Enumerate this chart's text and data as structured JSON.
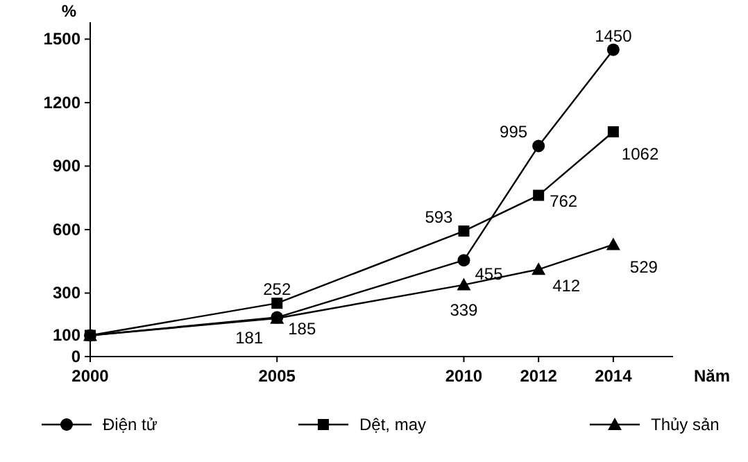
{
  "chart_data": {
    "type": "line",
    "xlabel": "Năm",
    "ylabel": "%",
    "x": [
      2000,
      2005,
      2010,
      2012,
      2014
    ],
    "xlim": [
      2000,
      2015.6
    ],
    "xticks": [
      2000,
      2005,
      2010,
      2012,
      2014
    ],
    "ylim": [
      0,
      1580
    ],
    "yticks": [
      0,
      100,
      300,
      600,
      900,
      1200,
      1500
    ],
    "grid": false,
    "legend": "bottom",
    "series": [
      {
        "name": "Điện tử",
        "color": "#000000",
        "marker": "circle",
        "values": [
          100,
          185,
          455,
          995,
          1450
        ],
        "value_labels": [
          null,
          "185",
          "455",
          "995",
          "1450"
        ]
      },
      {
        "name": "Dệt, may",
        "color": "#000000",
        "marker": "square",
        "values": [
          100,
          252,
          593,
          762,
          1062
        ],
        "value_labels": [
          null,
          "252",
          "593",
          "762",
          "1062"
        ]
      },
      {
        "name": "Thủy sản",
        "color": "#000000",
        "marker": "triangle",
        "values": [
          100,
          181,
          339,
          412,
          529
        ],
        "value_labels": [
          null,
          "181",
          "339",
          "412",
          "529"
        ]
      }
    ]
  }
}
